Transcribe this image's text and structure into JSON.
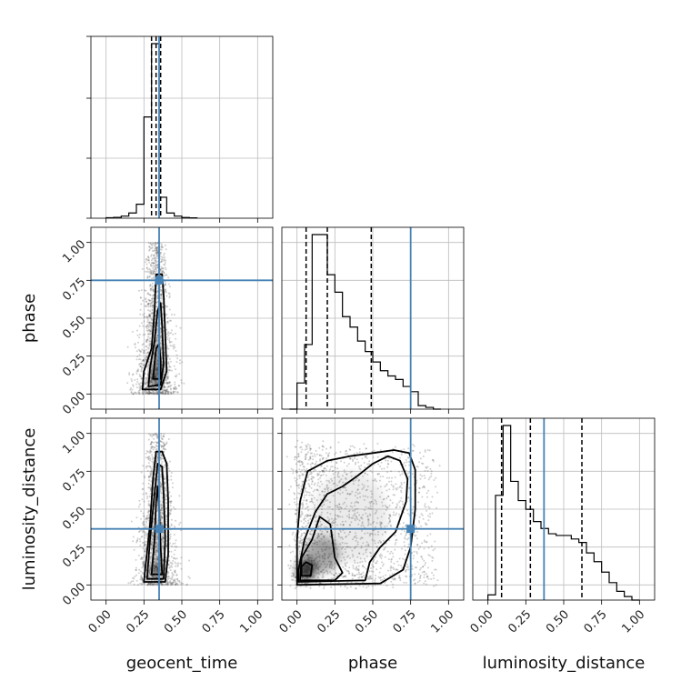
{
  "chart_data": {
    "type": "corner",
    "parameters": [
      "geocent_time",
      "phase",
      "luminosity_distance"
    ],
    "axis_labels": {
      "x": [
        "geocent_time",
        "phase",
        "luminosity_distance"
      ],
      "y": [
        "phase",
        "luminosity_distance"
      ]
    },
    "tick_values": [
      0.0,
      0.25,
      0.5,
      0.75,
      1.0
    ],
    "tick_labels": [
      "0.00",
      "0.25",
      "0.50",
      "0.75",
      "1.00"
    ],
    "xlim": [
      -0.1,
      1.1
    ],
    "ylim": [
      -0.1,
      1.1
    ],
    "grid": true,
    "truths": {
      "geocent_time": 0.35,
      "phase": 0.75,
      "luminosity_distance": 0.37
    },
    "truth_color": "#4682b4",
    "histograms": {
      "geocent_time": {
        "edges": [
          0.0,
          0.05,
          0.1,
          0.15,
          0.2,
          0.25,
          0.3,
          0.35,
          0.4,
          0.45,
          0.5,
          0.55,
          0.6
        ],
        "counts": [
          0.003,
          0.005,
          0.012,
          0.03,
          0.08,
          0.58,
          1.0,
          0.12,
          0.03,
          0.012,
          0.004,
          0.002
        ],
        "quantiles": [
          0.3,
          0.33,
          0.36
        ]
      },
      "phase": {
        "edges": [
          -0.05,
          0.0,
          0.05,
          0.1,
          0.15,
          0.2,
          0.25,
          0.3,
          0.35,
          0.4,
          0.45,
          0.5,
          0.55,
          0.6,
          0.65,
          0.7,
          0.75,
          0.8,
          0.85,
          0.9,
          0.95
        ],
        "counts": [
          0.0,
          0.15,
          0.37,
          1.0,
          1.0,
          0.77,
          0.67,
          0.53,
          0.47,
          0.39,
          0.33,
          0.27,
          0.22,
          0.19,
          0.17,
          0.13,
          0.1,
          0.02,
          0.01,
          0.0
        ],
        "quantiles": [
          0.06,
          0.2,
          0.49
        ]
      },
      "luminosity_distance": {
        "edges": [
          0.0,
          0.05,
          0.1,
          0.15,
          0.2,
          0.25,
          0.3,
          0.35,
          0.4,
          0.45,
          0.5,
          0.55,
          0.6,
          0.65,
          0.7,
          0.75,
          0.8,
          0.85,
          0.9,
          0.95,
          1.0
        ],
        "counts": [
          0.03,
          0.6,
          1.0,
          0.68,
          0.57,
          0.52,
          0.45,
          0.41,
          0.38,
          0.37,
          0.37,
          0.35,
          0.33,
          0.27,
          0.22,
          0.16,
          0.1,
          0.05,
          0.02,
          0.0
        ],
        "quantiles": [
          0.09,
          0.28,
          0.62
        ]
      }
    },
    "contours": {
      "phase_vs_geocent_time": [
        [
          [
            0.31,
            0.1
          ],
          [
            0.36,
            0.1
          ],
          [
            0.36,
            0.22
          ],
          [
            0.35,
            0.33
          ],
          [
            0.33,
            0.3
          ],
          [
            0.32,
            0.2
          ]
        ],
        [
          [
            0.28,
            0.05
          ],
          [
            0.36,
            0.06
          ],
          [
            0.38,
            0.2
          ],
          [
            0.37,
            0.45
          ],
          [
            0.36,
            0.6
          ],
          [
            0.34,
            0.55
          ],
          [
            0.32,
            0.35
          ],
          [
            0.29,
            0.17
          ]
        ],
        [
          [
            0.24,
            0.03
          ],
          [
            0.36,
            0.03
          ],
          [
            0.4,
            0.15
          ],
          [
            0.39,
            0.4
          ],
          [
            0.38,
            0.65
          ],
          [
            0.37,
            0.79
          ],
          [
            0.33,
            0.79
          ],
          [
            0.32,
            0.55
          ],
          [
            0.3,
            0.3
          ],
          [
            0.25,
            0.15
          ]
        ]
      ],
      "luminosity_distance_vs_geocent_time": [
        [
          [
            0.3,
            0.07
          ],
          [
            0.37,
            0.07
          ],
          [
            0.36,
            0.25
          ],
          [
            0.35,
            0.5
          ],
          [
            0.34,
            0.65
          ],
          [
            0.33,
            0.55
          ],
          [
            0.32,
            0.3
          ]
        ],
        [
          [
            0.27,
            0.04
          ],
          [
            0.38,
            0.04
          ],
          [
            0.39,
            0.3
          ],
          [
            0.38,
            0.6
          ],
          [
            0.37,
            0.78
          ],
          [
            0.34,
            0.8
          ],
          [
            0.32,
            0.6
          ],
          [
            0.29,
            0.3
          ]
        ],
        [
          [
            0.25,
            0.02
          ],
          [
            0.39,
            0.02
          ],
          [
            0.41,
            0.2
          ],
          [
            0.41,
            0.55
          ],
          [
            0.4,
            0.8
          ],
          [
            0.37,
            0.88
          ],
          [
            0.33,
            0.88
          ],
          [
            0.31,
            0.7
          ],
          [
            0.29,
            0.4
          ],
          [
            0.26,
            0.12
          ]
        ]
      ],
      "luminosity_distance_vs_phase": [
        [
          [
            0.03,
            0.06
          ],
          [
            0.09,
            0.06
          ],
          [
            0.1,
            0.13
          ],
          [
            0.06,
            0.15
          ],
          [
            0.03,
            0.12
          ]
        ],
        [
          [
            0.02,
            0.03
          ],
          [
            0.25,
            0.03
          ],
          [
            0.3,
            0.08
          ],
          [
            0.25,
            0.18
          ],
          [
            0.22,
            0.4
          ],
          [
            0.15,
            0.45
          ],
          [
            0.1,
            0.3
          ],
          [
            0.03,
            0.18
          ]
        ],
        [
          [
            0.01,
            0.02
          ],
          [
            0.45,
            0.03
          ],
          [
            0.48,
            0.15
          ],
          [
            0.55,
            0.25
          ],
          [
            0.65,
            0.35
          ],
          [
            0.72,
            0.55
          ],
          [
            0.73,
            0.7
          ],
          [
            0.68,
            0.82
          ],
          [
            0.6,
            0.85
          ],
          [
            0.5,
            0.8
          ],
          [
            0.4,
            0.72
          ],
          [
            0.3,
            0.65
          ],
          [
            0.2,
            0.6
          ],
          [
            0.12,
            0.48
          ],
          [
            0.05,
            0.3
          ],
          [
            0.01,
            0.1
          ]
        ],
        [
          [
            0.0,
            0.0
          ],
          [
            0.55,
            0.01
          ],
          [
            0.7,
            0.1
          ],
          [
            0.75,
            0.25
          ],
          [
            0.78,
            0.5
          ],
          [
            0.78,
            0.76
          ],
          [
            0.74,
            0.87
          ],
          [
            0.64,
            0.89
          ],
          [
            0.5,
            0.87
          ],
          [
            0.35,
            0.85
          ],
          [
            0.2,
            0.82
          ],
          [
            0.07,
            0.75
          ],
          [
            0.02,
            0.55
          ],
          [
            0.0,
            0.3
          ]
        ]
      ]
    }
  }
}
